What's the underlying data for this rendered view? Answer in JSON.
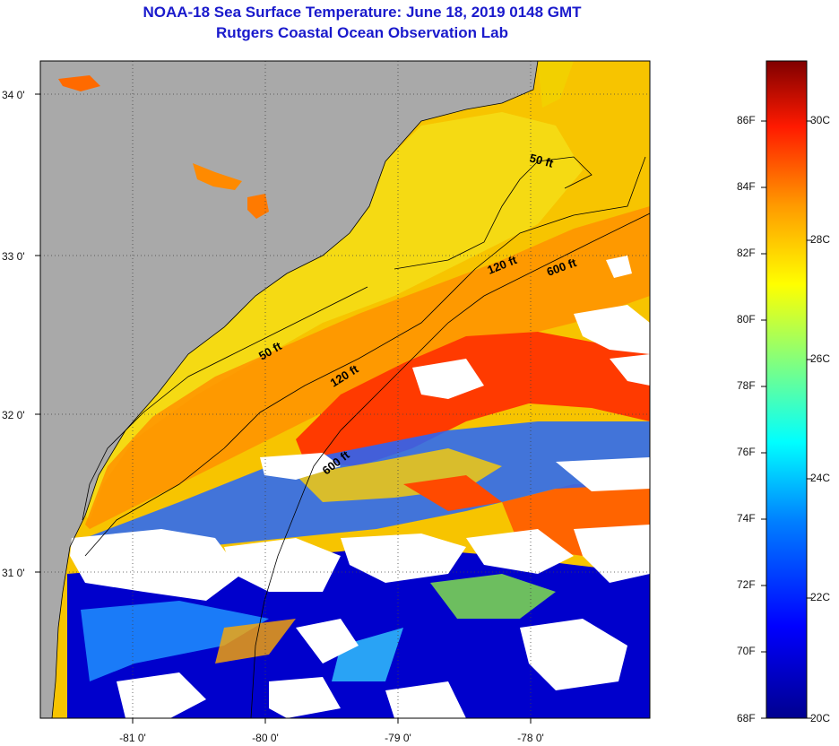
{
  "title": {
    "line1": "NOAA-18 Sea Surface Temperature:  June 18, 2019 0148 GMT",
    "line2": "Rutgers Coastal Ocean Observation Lab"
  },
  "axes": {
    "x_ticks": [
      "-81 0'",
      "-80 0'",
      "-79 0'",
      "-78 0'"
    ],
    "y_ticks": [
      "34 0'",
      "33 0'",
      "32 0'",
      "31 0'"
    ]
  },
  "contours": {
    "labels": [
      "50 ft",
      "50 ft",
      "120 ft",
      "120 ft",
      "600 ft",
      "600 ft"
    ]
  },
  "colorbar": {
    "fahrenheit": [
      "86F",
      "84F",
      "82F",
      "80F",
      "78F",
      "76F",
      "74F",
      "72F",
      "70F",
      "68F"
    ],
    "celsius": [
      "30C",
      "28C",
      "26C",
      "24C",
      "22C",
      "20C"
    ]
  },
  "colors": {
    "land": "#a9a9a9",
    "cloud": "#ffffff",
    "title": "#1a1acc"
  }
}
